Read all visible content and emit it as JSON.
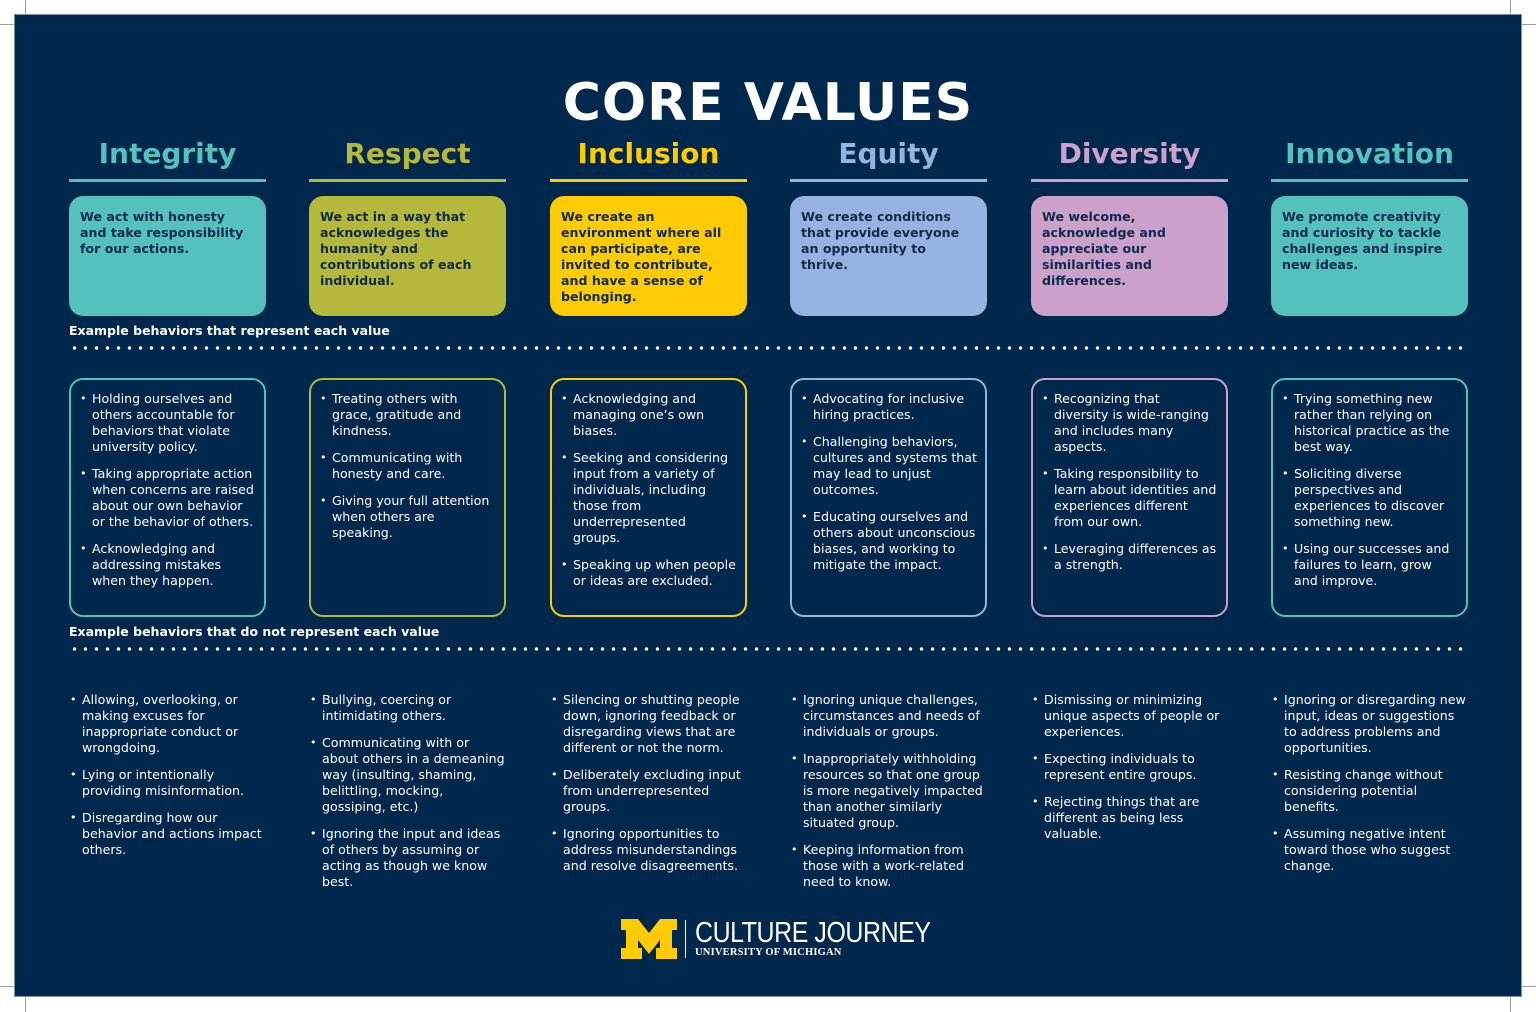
{
  "title": "CORE VALUES",
  "colors": {
    "background": "#00274c",
    "integrity": "#55c1bd",
    "respect": "#b5b83a",
    "inclusion": "#ffcb05",
    "equity": "#94b4df",
    "diversity": "#cba0ca",
    "innovation": "#55c1bd",
    "box_text": "#0f2a4a"
  },
  "sections": {
    "represent_label": "Example behaviors that represent each value",
    "not_represent_label": "Example behaviors that do not represent each value"
  },
  "values": [
    {
      "name": "Integrity",
      "description": "We act with honesty and take responsibility for our actions.",
      "represents": [
        "Holding ourselves and others accountable for behaviors that violate university policy.",
        "Taking appropriate action when concerns are raised about our own behavior or the behavior of others.",
        "Acknowledging and addressing mistakes when they happen."
      ],
      "does_not_represent": [
        "Allowing, overlooking, or making excuses for inappropriate conduct or wrongdoing.",
        "Lying or intentionally providing misinformation.",
        "Disregarding how our behavior and actions impact others."
      ]
    },
    {
      "name": "Respect",
      "description": "We act in a way that acknowledges the humanity and contributions of each individual.",
      "represents": [
        "Treating others with grace, gratitude and kindness.",
        "Communicating with honesty and care.",
        "Giving your full attention when others are speaking."
      ],
      "does_not_represent": [
        "Bullying, coercing or intimidating others.",
        "Communicating with or about others in a demeaning way (insulting, shaming, belittling, mocking, gossiping, etc.)",
        "Ignoring the input and ideas of others by assuming or acting as though we know best."
      ]
    },
    {
      "name": "Inclusion",
      "description": "We create an environment where all can participate, are invited to contribute, and have a sense of belonging.",
      "represents": [
        "Acknowledging and managing one’s own biases.",
        "Seeking and considering input from a variety of individuals, including those from underrepresented groups.",
        "Speaking up when people or ideas are excluded."
      ],
      "does_not_represent": [
        "Silencing or shutting people down, ignoring feedback or disregarding views that are different or not the norm.",
        "Deliberately excluding input from underrepresented groups.",
        "Ignoring opportunities to address misunderstand­ings and resolve disagree­ments."
      ]
    },
    {
      "name": "Equity",
      "description": "We create conditions that provide everyone an opportunity to thrive.",
      "represents": [
        "Advocating for inclusive hiring practices.",
        "Challenging behaviors, cultures and systems that may lead to unjust outcomes.",
        "Educating ourselves and others about unconscious biases, and working to mitigate the impact."
      ],
      "does_not_represent": [
        "Ignoring unique challenges, circumstances and needs of individuals or groups.",
        "Inappropriately withholding resources so that one group is more negatively impacted than another similarly situated group.",
        "Keeping information from those with a work-related need to know."
      ]
    },
    {
      "name": "Diversity",
      "description": "We welcome, acknowledge and appreciate our similarities and differences.",
      "represents": [
        "Recognizing that diversity is wide-ranging and includes many aspects.",
        "Taking responsibility to learn about identities and experiences different from our own.",
        "Leveraging differences as a strength."
      ],
      "does_not_represent": [
        "Dismissing or minimizing unique aspects of people or experiences.",
        "Expecting individuals to represent entire groups.",
        "Rejecting things that are different as being less valuable."
      ]
    },
    {
      "name": "Innovation",
      "description": "We promote creativity and curiosity to tackle challenges and inspire new ideas.",
      "represents": [
        "Trying something new rather than relying on historical practice as the best way.",
        "Soliciting diverse perspectives and experiences to discover something new.",
        "Using our successes and failures to learn, grow and improve."
      ],
      "does_not_represent": [
        "Ignoring or disregarding new input, ideas or suggestions to address problems and opportunities.",
        "Resisting change without considering potential benefits.",
        "Assuming negative intent toward those who suggest change."
      ]
    }
  ],
  "footer": {
    "logo_icon": "block-m-icon",
    "brand": "CULTURE JOURNEY",
    "subtitle": "UNIVERSITY OF MICHIGAN"
  }
}
